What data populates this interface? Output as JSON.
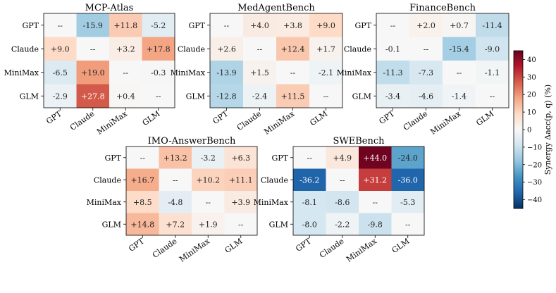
{
  "chart_data": [
    {
      "type": "heatmap",
      "title": "MCP-Atlas",
      "rows": [
        "GPT",
        "Claude",
        "MiniMax",
        "GLM"
      ],
      "cols": [
        "GPT",
        "Claude",
        "MiniMax",
        "GLM"
      ],
      "values": [
        [
          null,
          -15.9,
          11.8,
          -5.2
        ],
        [
          9.0,
          null,
          3.2,
          17.8
        ],
        [
          -6.5,
          19.0,
          null,
          -0.3
        ],
        [
          -2.9,
          27.8,
          0.4,
          null
        ]
      ],
      "labels": [
        [
          "--",
          "-15.9",
          "+11.8",
          "-5.2"
        ],
        [
          "+9.0",
          "--",
          "+3.2",
          "+17.8"
        ],
        [
          "-6.5",
          "+19.0",
          "--",
          "-0.3"
        ],
        [
          "-2.9",
          "+27.8",
          "+0.4",
          "--"
        ]
      ]
    },
    {
      "type": "heatmap",
      "title": "MedAgentBench",
      "rows": [
        "GPT",
        "Claude",
        "MiniMax",
        "GLM"
      ],
      "cols": [
        "GPT",
        "Claude",
        "MiniMax",
        "GLM"
      ],
      "values": [
        [
          null,
          4.0,
          3.8,
          9.0
        ],
        [
          2.6,
          null,
          12.4,
          1.7
        ],
        [
          -13.9,
          1.5,
          null,
          -2.1
        ],
        [
          -12.8,
          -2.4,
          11.5,
          null
        ]
      ],
      "labels": [
        [
          "--",
          "+4.0",
          "+3.8",
          "+9.0"
        ],
        [
          "+2.6",
          "--",
          "+12.4",
          "+1.7"
        ],
        [
          "-13.9",
          "+1.5",
          "--",
          "-2.1"
        ],
        [
          "-12.8",
          "-2.4",
          "+11.5",
          "--"
        ]
      ]
    },
    {
      "type": "heatmap",
      "title": "FinanceBench",
      "rows": [
        "GPT",
        "Claude",
        "MiniMax",
        "GLM"
      ],
      "cols": [
        "GPT",
        "Claude",
        "MiniMax",
        "GLM"
      ],
      "values": [
        [
          null,
          2.0,
          0.7,
          -11.4
        ],
        [
          -0.1,
          null,
          -15.4,
          -9.0
        ],
        [
          -11.3,
          -7.3,
          null,
          -1.1
        ],
        [
          -3.4,
          -4.6,
          -1.4,
          null
        ]
      ],
      "labels": [
        [
          "--",
          "+2.0",
          "+0.7",
          "-11.4"
        ],
        [
          "-0.1",
          "--",
          "-15.4",
          "-9.0"
        ],
        [
          "-11.3",
          "-7.3",
          "--",
          "-1.1"
        ],
        [
          "-3.4",
          "-4.6",
          "-1.4",
          "--"
        ]
      ]
    },
    {
      "type": "heatmap",
      "title": "IMO-AnswerBench",
      "rows": [
        "GPT",
        "Claude",
        "MiniMax",
        "GLM"
      ],
      "cols": [
        "GPT",
        "Claude",
        "MiniMax",
        "GLM"
      ],
      "values": [
        [
          null,
          13.2,
          -3.2,
          6.3
        ],
        [
          16.7,
          null,
          10.2,
          11.1
        ],
        [
          8.5,
          -4.8,
          null,
          3.9
        ],
        [
          14.8,
          7.2,
          1.9,
          null
        ]
      ],
      "labels": [
        [
          "--",
          "+13.2",
          "-3.2",
          "+6.3"
        ],
        [
          "+16.7",
          "--",
          "+10.2",
          "+11.1"
        ],
        [
          "+8.5",
          "-4.8",
          "--",
          "+3.9"
        ],
        [
          "+14.8",
          "+7.2",
          "+1.9",
          "--"
        ]
      ]
    },
    {
      "type": "heatmap",
      "title": "SWEBench",
      "rows": [
        "GPT",
        "Claude",
        "MiniMax",
        "GLM"
      ],
      "cols": [
        "GPT",
        "Claude",
        "MiniMax",
        "GLM"
      ],
      "values": [
        [
          null,
          4.9,
          44.0,
          -24.0
        ],
        [
          -36.2,
          null,
          31.2,
          -36.0
        ],
        [
          -8.1,
          -8.6,
          null,
          -5.3
        ],
        [
          -8.0,
          -2.2,
          -9.8,
          null
        ]
      ],
      "labels": [
        [
          "--",
          "+4.9",
          "+44.0",
          "-24.0"
        ],
        [
          "-36.2",
          "--",
          "+31.2",
          "-36.0"
        ],
        [
          "-8.1",
          "-8.6",
          "--",
          "-5.3"
        ],
        [
          "-8.0",
          "-2.2",
          "-9.8",
          "--"
        ]
      ]
    }
  ],
  "colorbar": {
    "label": "Synergy Δacc(p, q) (%)",
    "range": [
      -45,
      45
    ],
    "colormap": "RdBu_r",
    "ticks": [
      -40,
      -30,
      -20,
      -10,
      0,
      10,
      20,
      30,
      40
    ]
  }
}
